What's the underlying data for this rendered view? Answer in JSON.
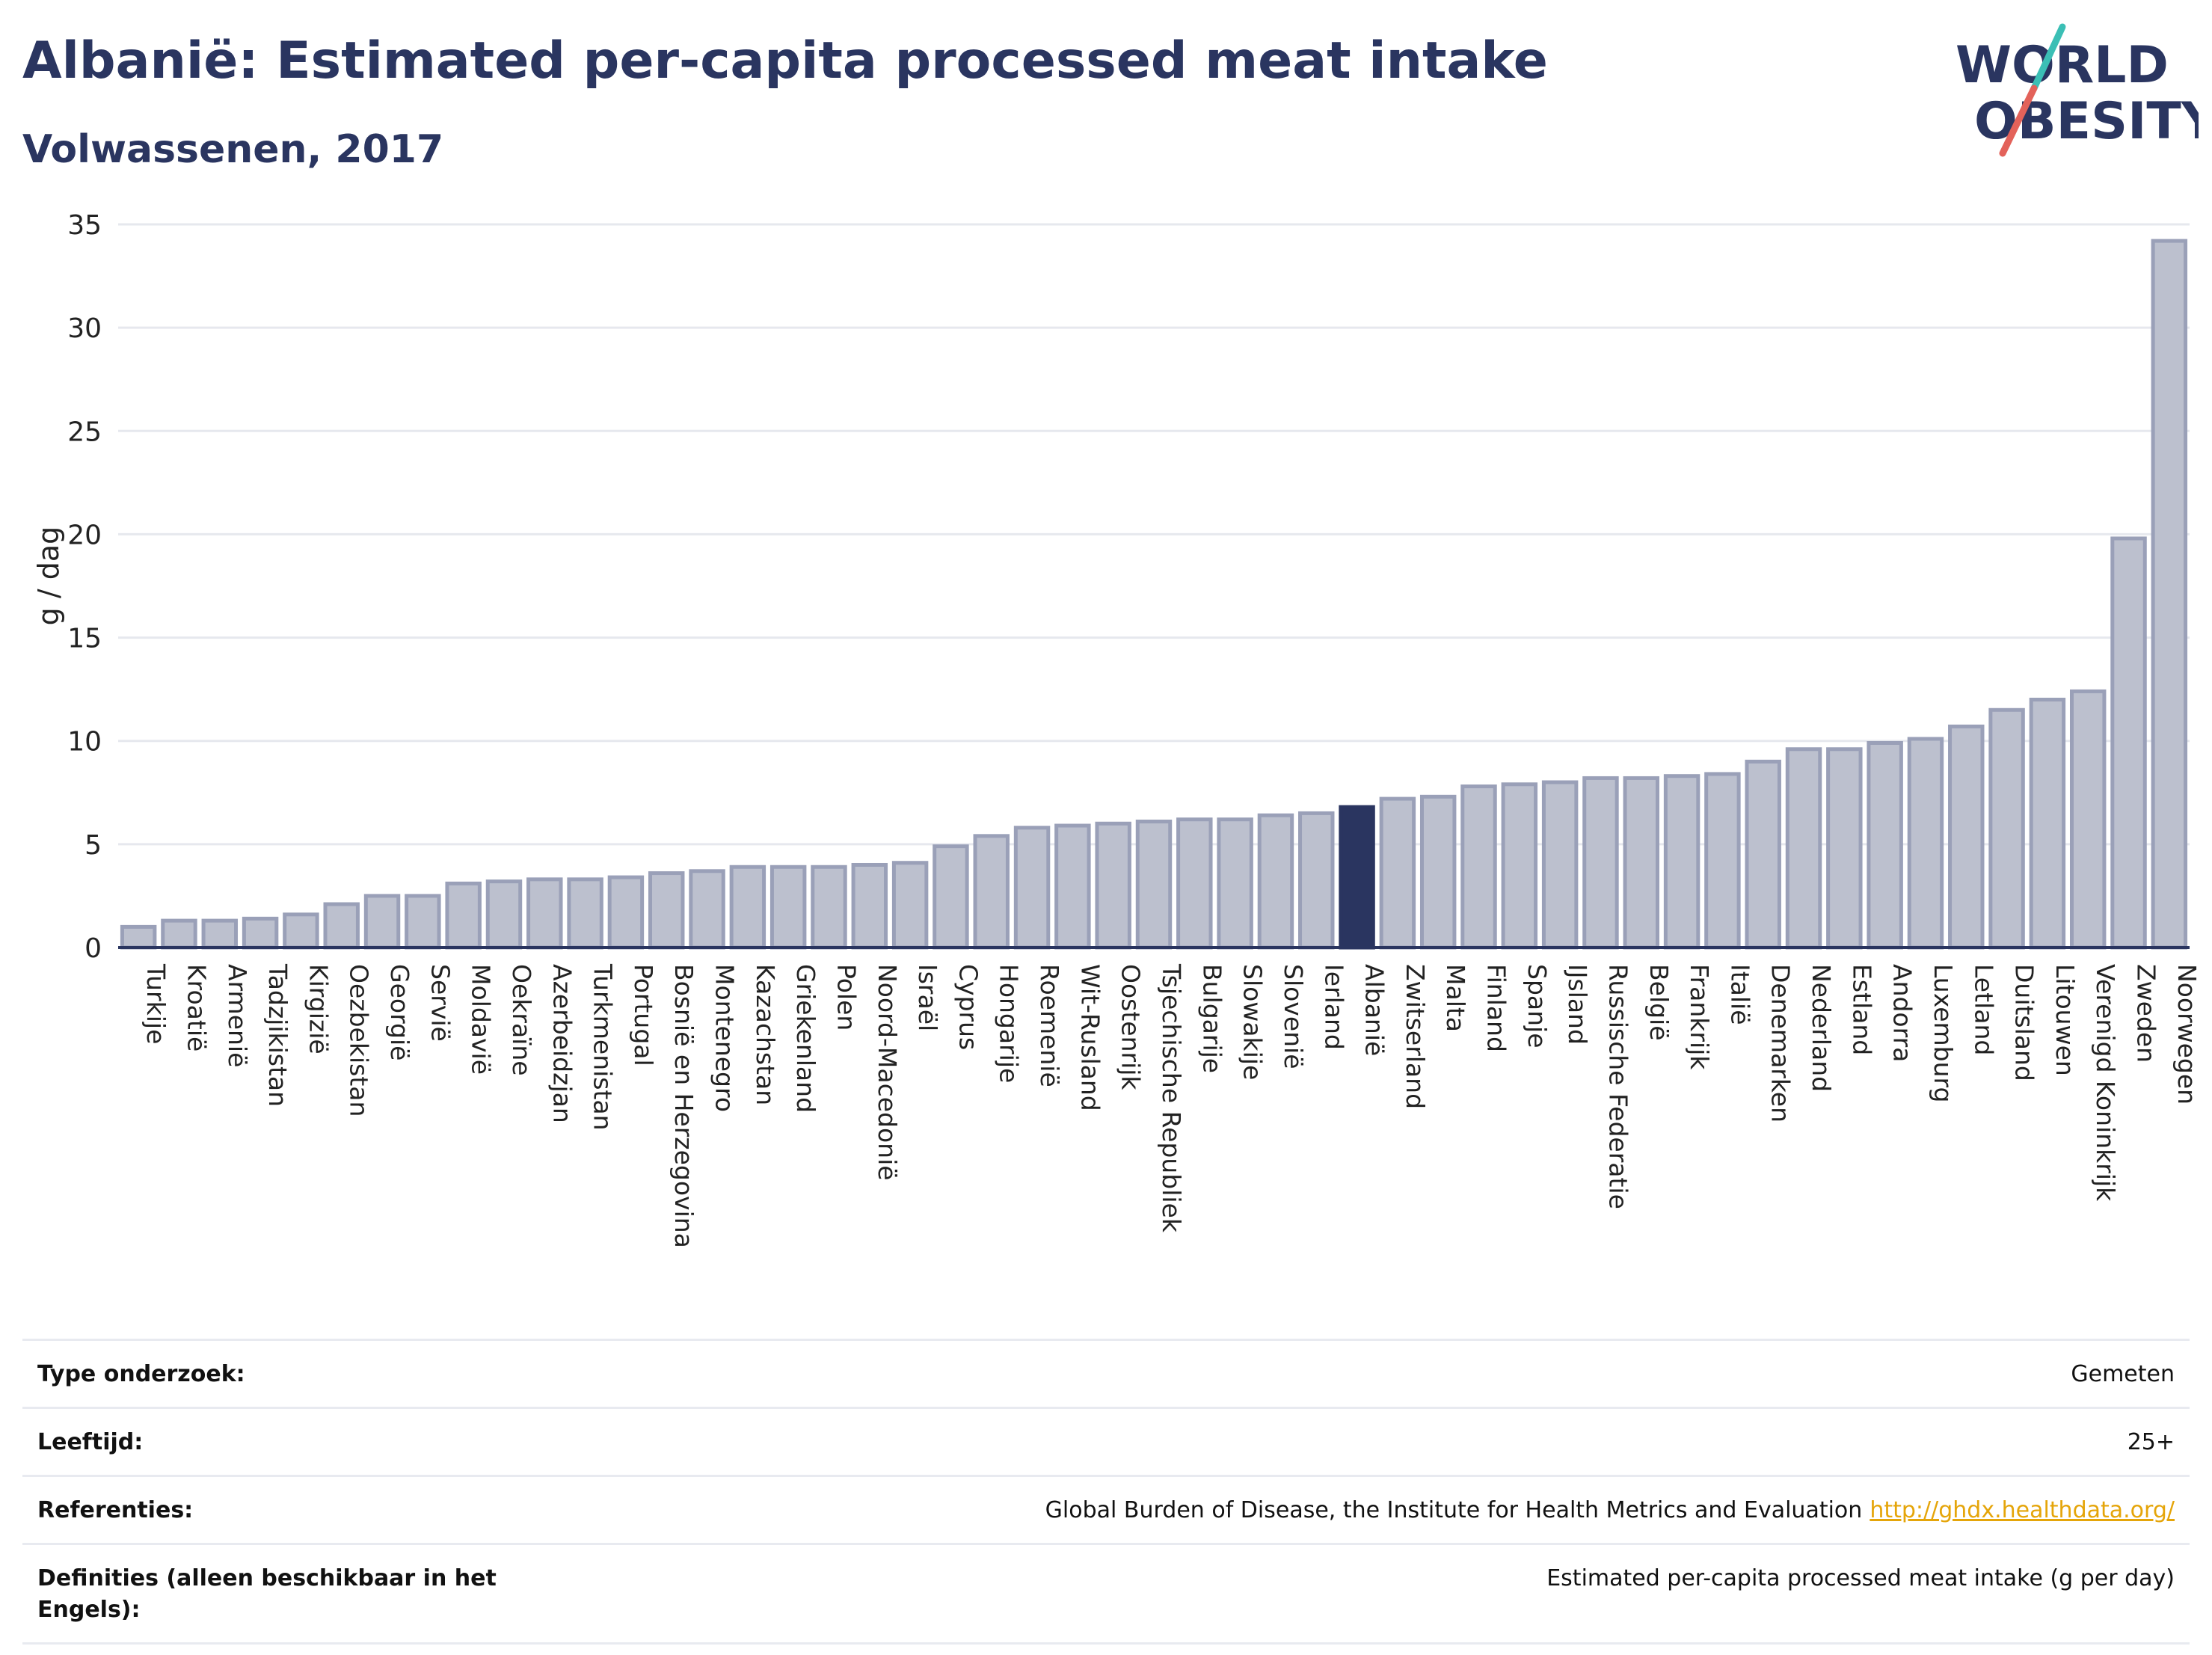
{
  "header": {
    "title": "Albanië: Estimated per-capita processed meat intake",
    "subtitle": "Volwassenen, 2017"
  },
  "logo": {
    "line1": "WORLD",
    "line2": "OBESITY",
    "accent_teal": "#3bbfb5",
    "accent_red": "#e3625a",
    "text_color": "#2a3560"
  },
  "colors": {
    "bar_fill": "#bcc0ce",
    "bar_stroke": "#9aa0b8",
    "highlight": "#2a3560",
    "grid": "#e6e8ee"
  },
  "chart_data": {
    "type": "bar",
    "ylabel": "g / dag",
    "ylim": [
      0,
      35
    ],
    "yticks": [
      0,
      5,
      10,
      15,
      20,
      25,
      30,
      35
    ],
    "grid": true,
    "highlight_category": "Albanië",
    "categories": [
      "Turkije",
      "Kroatië",
      "Armenië",
      "Tadzjikistan",
      "Kirgizië",
      "Oezbekistan",
      "Georgië",
      "Servië",
      "Moldavië",
      "Oekraïne",
      "Azerbeidzjan",
      "Turkmenistan",
      "Portugal",
      "Bosnië en Herzegovina",
      "Montenegro",
      "Kazachstan",
      "Griekenland",
      "Polen",
      "Noord-Macedonië",
      "Israël",
      "Cyprus",
      "Hongarije",
      "Roemenië",
      "Wit-Rusland",
      "Oostenrijk",
      "Tsjechische Republiek",
      "Bulgarije",
      "Slowakije",
      "Slovenië",
      "Ierland",
      "Albanië",
      "Zwitserland",
      "Malta",
      "Finland",
      "Spanje",
      "IJsland",
      "Russische Federatie",
      "België",
      "Frankrijk",
      "Italië",
      "Denemarken",
      "Nederland",
      "Estland",
      "Andorra",
      "Luxemburg",
      "Letland",
      "Duitsland",
      "Litouwen",
      "Verenigd Koninkrijk",
      "Zweden",
      "Noorwegen"
    ],
    "values": [
      1.0,
      1.3,
      1.3,
      1.4,
      1.6,
      2.1,
      2.5,
      2.5,
      3.1,
      3.2,
      3.3,
      3.3,
      3.4,
      3.6,
      3.7,
      3.9,
      3.9,
      3.9,
      4.0,
      4.1,
      4.9,
      5.4,
      5.8,
      5.9,
      6.0,
      6.1,
      6.2,
      6.2,
      6.4,
      6.5,
      6.8,
      7.2,
      7.3,
      7.8,
      7.9,
      8.0,
      8.2,
      8.2,
      8.3,
      8.4,
      9.0,
      9.6,
      9.6,
      9.9,
      10.1,
      10.7,
      11.5,
      12.0,
      12.4,
      19.8,
      34.2
    ]
  },
  "info_table": [
    {
      "key": "Type onderzoek:",
      "value": "Gemeten",
      "link": ""
    },
    {
      "key": "Leeftijd:",
      "value": "25+",
      "link": ""
    },
    {
      "key": "Referenties:",
      "value": "Global Burden of Disease, the Institute for Health Metrics and Evaluation",
      "link": "http://ghdx.healthdata.org/"
    },
    {
      "key": "Definities (alleen beschikbaar in het Engels):",
      "value": "Estimated per-capita processed meat intake (g per day)",
      "link": ""
    }
  ]
}
